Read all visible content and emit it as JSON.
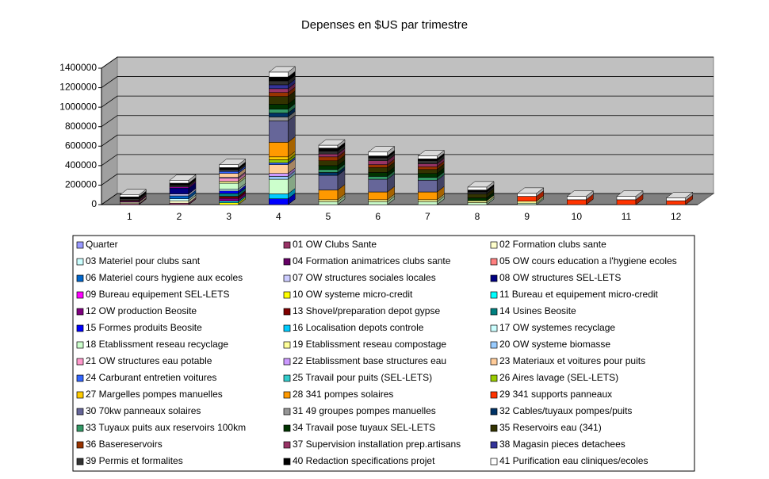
{
  "chart_data": {
    "type": "bar3d_stacked",
    "title": "Depenses en $US par trimestre",
    "categories": [
      "1",
      "2",
      "3",
      "4",
      "5",
      "6",
      "7",
      "8",
      "9",
      "10",
      "11",
      "12"
    ],
    "ylim": [
      0,
      1400000
    ],
    "yticks": [
      0,
      200000,
      400000,
      600000,
      800000,
      1000000,
      1200000,
      1400000
    ],
    "grid": true,
    "series": [
      {
        "name": "Quarter",
        "color": "#9999FF",
        "values": [
          1,
          2,
          3,
          4,
          5,
          6,
          7,
          8,
          9,
          10,
          11,
          12
        ]
      },
      {
        "name": "01 OW Clubs Sante",
        "color": "#993366",
        "values": [
          10000,
          15000,
          0,
          0,
          0,
          0,
          0,
          0,
          0,
          0,
          0,
          0
        ]
      },
      {
        "name": "02 Formation clubs sante",
        "color": "#FFFFCC",
        "values": [
          15000,
          25000,
          0,
          0,
          0,
          0,
          0,
          0,
          0,
          0,
          0,
          0
        ]
      },
      {
        "name": "03 Materiel pour clubs sant",
        "color": "#CCFFFF",
        "values": [
          0,
          20000,
          0,
          0,
          0,
          0,
          0,
          0,
          0,
          0,
          0,
          0
        ]
      },
      {
        "name": "04 Formation animatrices clubs sante",
        "color": "#660066",
        "values": [
          12000,
          0,
          0,
          0,
          0,
          0,
          0,
          0,
          0,
          0,
          0,
          0
        ]
      },
      {
        "name": "05 OW cours education a l'hygiene ecoles",
        "color": "#FF8080",
        "values": [
          8000,
          0,
          0,
          0,
          0,
          0,
          0,
          0,
          0,
          0,
          0,
          0
        ]
      },
      {
        "name": "06 Materiel cours hygiene aux ecoles",
        "color": "#0066CC",
        "values": [
          0,
          30000,
          0,
          0,
          0,
          0,
          0,
          0,
          0,
          0,
          0,
          0
        ]
      },
      {
        "name": "07 OW structures sociales locales",
        "color": "#CCCCFF",
        "values": [
          0,
          20000,
          0,
          0,
          0,
          0,
          0,
          0,
          0,
          0,
          0,
          0
        ]
      },
      {
        "name": "08 OW structures SEL-LETS",
        "color": "#000080",
        "values": [
          0,
          60000,
          0,
          0,
          0,
          0,
          0,
          0,
          0,
          0,
          0,
          0
        ]
      },
      {
        "name": "09 Bureau equipement SEL-LETS",
        "color": "#FF00FF",
        "values": [
          0,
          10000,
          0,
          0,
          0,
          0,
          0,
          0,
          0,
          0,
          0,
          0
        ]
      },
      {
        "name": "10 OW systeme micro-credit",
        "color": "#FFFF00",
        "values": [
          0,
          0,
          20000,
          0,
          0,
          0,
          0,
          0,
          0,
          0,
          0,
          0
        ]
      },
      {
        "name": "11 Bureau et equipement micro-credit",
        "color": "#00FFFF",
        "values": [
          0,
          0,
          15000,
          0,
          0,
          0,
          0,
          0,
          0,
          0,
          0,
          0
        ]
      },
      {
        "name": "12 OW  production Beosite",
        "color": "#800080",
        "values": [
          0,
          0,
          30000,
          0,
          0,
          0,
          0,
          0,
          0,
          0,
          0,
          0
        ]
      },
      {
        "name": "13 Shovel/preparation depot gypse",
        "color": "#800000",
        "values": [
          0,
          0,
          20000,
          0,
          0,
          0,
          0,
          0,
          0,
          0,
          0,
          0
        ]
      },
      {
        "name": "14 Usines Beosite",
        "color": "#008080",
        "values": [
          0,
          0,
          30000,
          0,
          0,
          0,
          0,
          0,
          0,
          0,
          0,
          0
        ]
      },
      {
        "name": "15 Formes produits Beosite",
        "color": "#0000FF",
        "values": [
          0,
          0,
          25000,
          60000,
          0,
          0,
          0,
          0,
          0,
          0,
          0,
          0
        ]
      },
      {
        "name": "16 Localisation depots controle",
        "color": "#00CCFF",
        "values": [
          0,
          0,
          0,
          50000,
          0,
          0,
          0,
          0,
          0,
          0,
          0,
          0
        ]
      },
      {
        "name": "17 OW systemes recyclage",
        "color": "#CCFFFF",
        "values": [
          0,
          0,
          20000,
          0,
          0,
          0,
          0,
          0,
          0,
          0,
          0,
          0
        ]
      },
      {
        "name": "18 Etablissment reseau recyclage",
        "color": "#CCFFCC",
        "values": [
          0,
          0,
          60000,
          150000,
          30000,
          30000,
          30000,
          20000,
          15000,
          0,
          0,
          0
        ]
      },
      {
        "name": "19 Etablissment reseau compostage",
        "color": "#FFFF99",
        "values": [
          0,
          0,
          20000,
          0,
          20000,
          20000,
          20000,
          20000,
          20000,
          0,
          0,
          0
        ]
      },
      {
        "name": "20 OW systeme biomasse",
        "color": "#99CCFF",
        "values": [
          0,
          0,
          0,
          30000,
          0,
          0,
          0,
          0,
          0,
          0,
          0,
          0
        ]
      },
      {
        "name": "21 OW structures eau potable",
        "color": "#FF99CC",
        "values": [
          0,
          0,
          30000,
          0,
          0,
          0,
          0,
          0,
          0,
          0,
          0,
          0
        ]
      },
      {
        "name": "22 Etablissment base structures eau",
        "color": "#CC99FF",
        "values": [
          0,
          0,
          10000,
          30000,
          0,
          0,
          0,
          0,
          0,
          0,
          0,
          0
        ]
      },
      {
        "name": "23 Materiaux et voitures pour puits",
        "color": "#FFCC99",
        "values": [
          0,
          0,
          40000,
          90000,
          0,
          0,
          0,
          0,
          0,
          0,
          0,
          0
        ]
      },
      {
        "name": "24 Carburant entretien voitures",
        "color": "#3366FF",
        "values": [
          0,
          0,
          20000,
          20000,
          0,
          0,
          0,
          0,
          0,
          0,
          0,
          0
        ]
      },
      {
        "name": "25 Travail pour puits (SEL-LETS)",
        "color": "#33CCCC",
        "values": [
          0,
          0,
          0,
          0,
          0,
          0,
          0,
          0,
          0,
          0,
          0,
          0
        ]
      },
      {
        "name": "26 Aires lavage (SEL-LETS)",
        "color": "#99CC00",
        "values": [
          0,
          0,
          0,
          30000,
          0,
          0,
          0,
          0,
          0,
          0,
          0,
          0
        ]
      },
      {
        "name": "27 Margelles pompes manuelles",
        "color": "#FFCC00",
        "values": [
          0,
          0,
          0,
          30000,
          0,
          0,
          0,
          0,
          0,
          0,
          0,
          0
        ]
      },
      {
        "name": "28 341 pompes solaires",
        "color": "#FF9900",
        "values": [
          0,
          0,
          0,
          150000,
          100000,
          80000,
          80000,
          0,
          0,
          0,
          0,
          0
        ]
      },
      {
        "name": "29 341 supports panneaux",
        "color": "#FF3300",
        "values": [
          0,
          0,
          0,
          0,
          0,
          0,
          0,
          0,
          50000,
          50000,
          50000,
          40000
        ]
      },
      {
        "name": "30 70kw panneaux solaires",
        "color": "#666699",
        "values": [
          0,
          0,
          0,
          220000,
          150000,
          130000,
          120000,
          0,
          0,
          0,
          0,
          0
        ]
      },
      {
        "name": "31 49 groupes pompes manuelles",
        "color": "#969696",
        "values": [
          0,
          0,
          0,
          40000,
          0,
          0,
          0,
          0,
          0,
          0,
          0,
          0
        ]
      },
      {
        "name": "32 Cables/tuyaux pompes/puits",
        "color": "#003366",
        "values": [
          0,
          0,
          0,
          40000,
          30000,
          0,
          0,
          0,
          0,
          0,
          0,
          0
        ]
      },
      {
        "name": "33 Tuyaux puits aux reservoirs 100km",
        "color": "#339966",
        "values": [
          0,
          0,
          0,
          40000,
          30000,
          30000,
          30000,
          0,
          0,
          0,
          0,
          0
        ]
      },
      {
        "name": "34 Travail pose tuyaux SEL-LETS",
        "color": "#003300",
        "values": [
          0,
          0,
          0,
          50000,
          40000,
          40000,
          40000,
          30000,
          0,
          0,
          0,
          0
        ]
      },
      {
        "name": "35 Reservoirs eau (341)",
        "color": "#333300",
        "values": [
          0,
          0,
          0,
          80000,
          50000,
          50000,
          40000,
          40000,
          0,
          0,
          0,
          0
        ]
      },
      {
        "name": "36 Basereservoirs",
        "color": "#993300",
        "values": [
          0,
          0,
          0,
          40000,
          40000,
          30000,
          30000,
          0,
          0,
          0,
          0,
          0
        ]
      },
      {
        "name": "37 Supervision installation prep.artisans",
        "color": "#993366",
        "values": [
          0,
          0,
          0,
          40000,
          30000,
          40000,
          30000,
          0,
          0,
          0,
          0,
          0
        ]
      },
      {
        "name": "38 Magasin pieces detachees",
        "color": "#333399",
        "values": [
          0,
          0,
          0,
          40000,
          0,
          0,
          0,
          0,
          0,
          0,
          0,
          0
        ]
      },
      {
        "name": "39 Permis et formalites",
        "color": "#333333",
        "values": [
          15000,
          20000,
          20000,
          40000,
          30000,
          30000,
          30000,
          20000,
          0,
          0,
          0,
          0
        ]
      },
      {
        "name": "40 Redaction specifications projet",
        "color": "#000000",
        "values": [
          20000,
          20000,
          20000,
          40000,
          30000,
          20000,
          20000,
          20000,
          0,
          0,
          0,
          0
        ]
      },
      {
        "name": "41 Purification eau cliniques/ecoles",
        "color": "#FFFFFF",
        "values": [
          20000,
          30000,
          30000,
          50000,
          30000,
          40000,
          30000,
          30000,
          30000,
          35000,
          35000,
          30000
        ]
      }
    ]
  }
}
